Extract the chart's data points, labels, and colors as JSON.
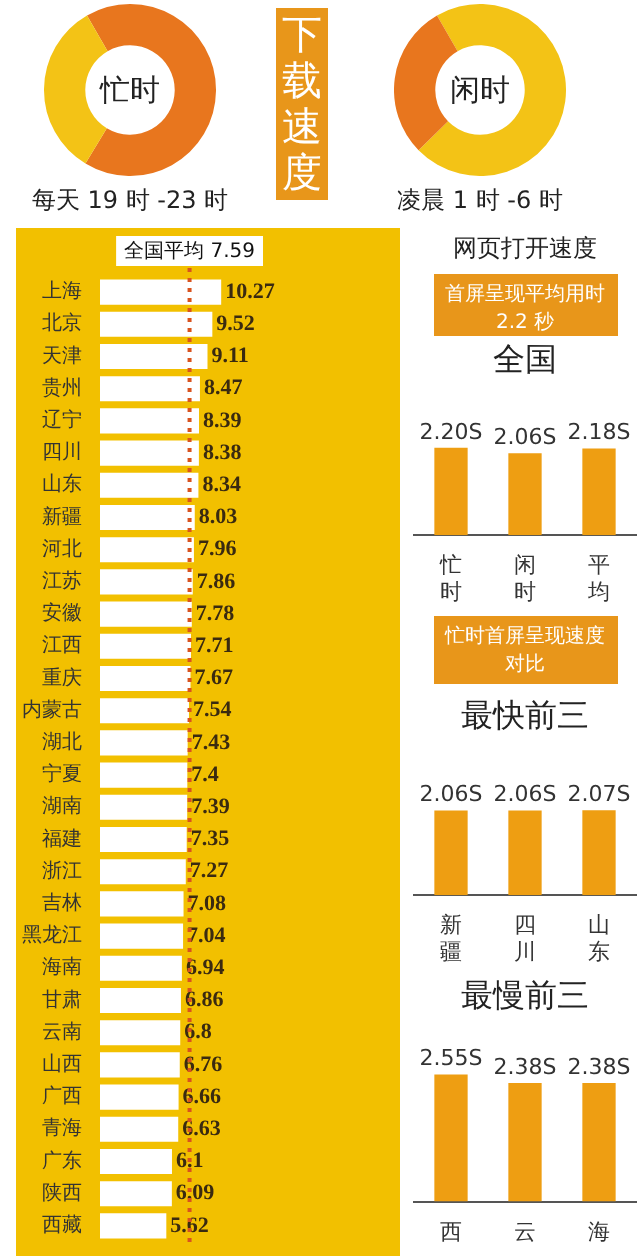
{
  "chart_data": [
    {
      "type": "donut",
      "title": "忙时",
      "subtitle": "每天 19 时 -23 时",
      "categories": [
        null,
        null
      ],
      "values": [
        67,
        33
      ],
      "colors": [
        "#e8761e",
        "#f3c316"
      ]
    },
    {
      "type": "other",
      "title": "下载速度"
    },
    {
      "type": "donut",
      "title": "闲时",
      "subtitle": "凌晨 1 时 -6 时",
      "categories": [
        null,
        null
      ],
      "values": [
        71,
        29
      ],
      "colors": [
        "#f3c316",
        "#e8761e"
      ]
    },
    {
      "type": "bar",
      "orientation": "horizontal",
      "categories": [
        "上海",
        "北京",
        "天津",
        "贵州",
        "辽宁",
        "四川",
        "山东",
        "新疆",
        "河北",
        "江苏",
        "安徽",
        "江西",
        "重庆",
        "内蒙古",
        "湖北",
        "宁夏",
        "湖南",
        "福建",
        "浙江",
        "吉林",
        "黑龙江",
        "海南",
        "甘肃",
        "云南",
        "山西",
        "广西",
        "青海",
        "广东",
        "陕西",
        "西藏"
      ],
      "values": [
        10.27,
        9.52,
        9.11,
        8.47,
        8.39,
        8.38,
        8.34,
        8.03,
        7.96,
        7.86,
        7.78,
        7.71,
        7.67,
        7.54,
        7.43,
        7.4,
        7.39,
        7.35,
        7.27,
        7.08,
        7.04,
        6.94,
        6.86,
        6.8,
        6.76,
        6.66,
        6.63,
        6.1,
        6.09,
        5.62
      ],
      "color": "#ffffff",
      "data_labels": true,
      "ref_lines": [
        {
          "axis": "x",
          "value": 7.59,
          "label": "全国平均 7.59",
          "color": "#d9531e",
          "line_style": "dotted"
        }
      ]
    },
    {
      "type": "other",
      "title": "网页打开速度",
      "subtitle": "首屏呈现平均用时 2.2 秒"
    },
    {
      "type": "bar",
      "title": "全国",
      "categories": [
        "忙时",
        "闲时",
        "平均"
      ],
      "values": [
        2.2,
        2.06,
        2.18
      ],
      "value_labels": [
        "2.20S",
        "2.06S",
        "2.18S"
      ],
      "color": "#ee9e12"
    },
    {
      "type": "other",
      "title": "忙时首屏呈现速度对比"
    },
    {
      "type": "bar",
      "title": "最快前三",
      "categories": [
        "新疆",
        "四川",
        "山东"
      ],
      "values": [
        2.06,
        2.06,
        2.07
      ],
      "value_labels": [
        "2.06S",
        "2.06S",
        "2.07S"
      ],
      "color": "#ee9e12"
    },
    {
      "type": "bar",
      "title": "最慢前三",
      "categories": [
        "西",
        "云",
        "海"
      ],
      "values": [
        2.55,
        2.38,
        2.38
      ],
      "value_labels": [
        "2.55S",
        "2.38S",
        "2.38S"
      ],
      "color": "#ee9e12"
    }
  ]
}
